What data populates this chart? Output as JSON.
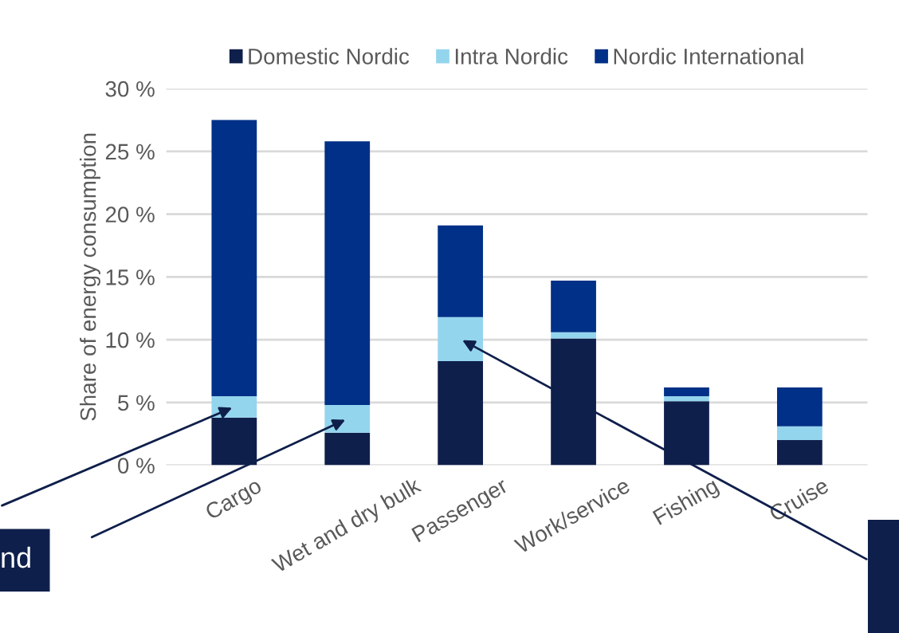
{
  "chart_data": {
    "type": "bar",
    "stacked": true,
    "ylabel": "Share of energy consumption",
    "categories": [
      "Cargo",
      "Wet and dry bulk",
      "Passenger",
      "Work/service",
      "Fishing",
      "Cruise"
    ],
    "series": [
      {
        "name": "Domestic Nordic",
        "color": "#0f1f4b",
        "values": [
          3.8,
          2.6,
          8.3,
          10.1,
          5.1,
          2.0
        ]
      },
      {
        "name": "Intra Nordic",
        "color": "#94d5ee",
        "values": [
          1.7,
          2.2,
          3.5,
          0.5,
          0.4,
          1.1
        ]
      },
      {
        "name": "Nordic International",
        "color": "#003087",
        "values": [
          22.0,
          21.0,
          7.3,
          4.1,
          0.7,
          3.1
        ]
      }
    ],
    "ylim": [
      0,
      30
    ],
    "yticks": [
      {
        "value": 0,
        "label": "0 %"
      },
      {
        "value": 5,
        "label": "5 %"
      },
      {
        "value": 10,
        "label": "10 %"
      },
      {
        "value": 15,
        "label": "15 %"
      },
      {
        "value": 20,
        "label": "20 %"
      },
      {
        "value": 25,
        "label": "25 %"
      },
      {
        "value": 30,
        "label": "30 %"
      }
    ],
    "grid": "y",
    "legend": "top",
    "annotations": [
      "nd"
    ]
  }
}
